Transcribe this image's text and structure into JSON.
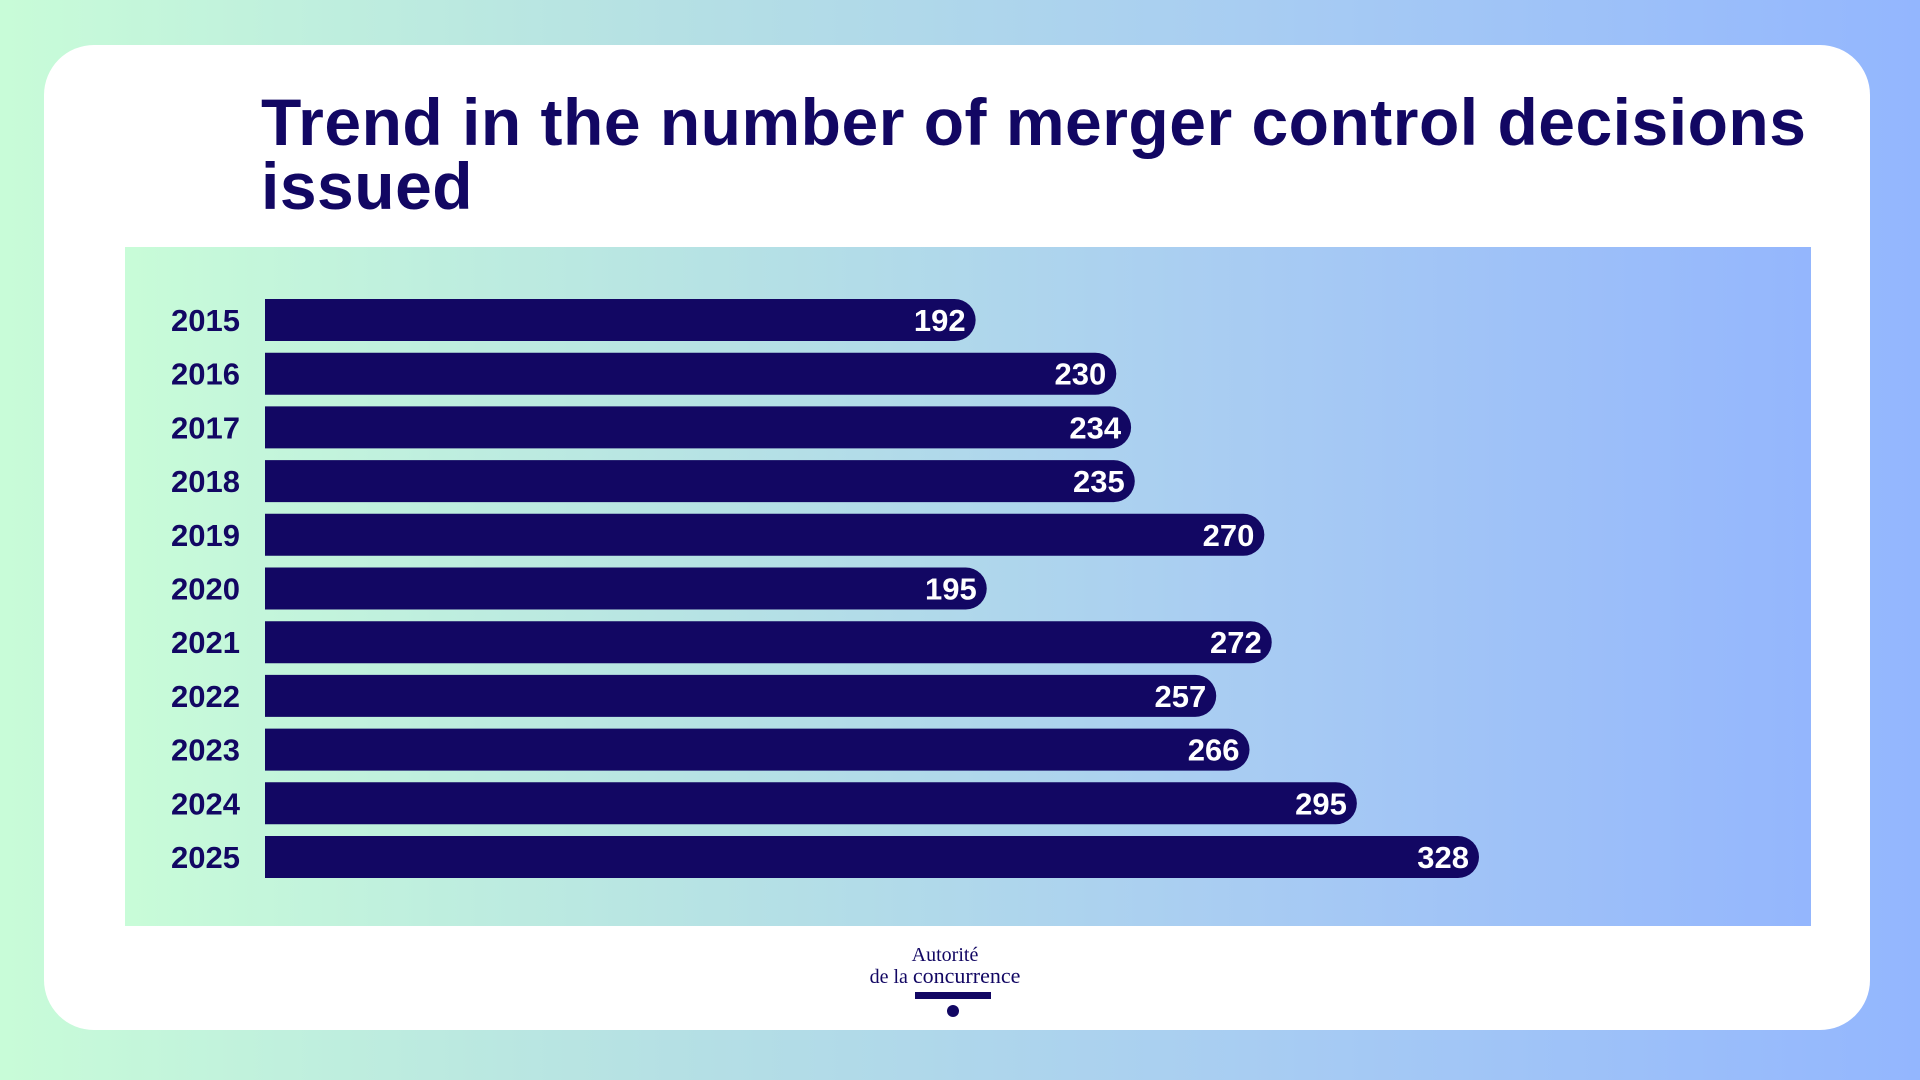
{
  "title": "Trend in the number of merger control decisions issued",
  "logo": {
    "line1": "Autorité",
    "line2a": "de la",
    "line2b": "concurrence"
  },
  "colors": {
    "bar": "#120763",
    "label": "#120763",
    "value_text": "#ffffff"
  },
  "chart_data": {
    "type": "bar",
    "orientation": "horizontal",
    "title": "Trend in the number of merger control decisions issued",
    "categories": [
      "2015",
      "2016",
      "2017",
      "2018",
      "2019",
      "2020",
      "2021",
      "2022",
      "2023",
      "2024",
      "2025"
    ],
    "values": [
      192,
      230,
      234,
      235,
      270,
      195,
      272,
      257,
      266,
      295,
      328
    ],
    "xlim": [
      0,
      328
    ],
    "grid": false,
    "data_labels": true
  }
}
